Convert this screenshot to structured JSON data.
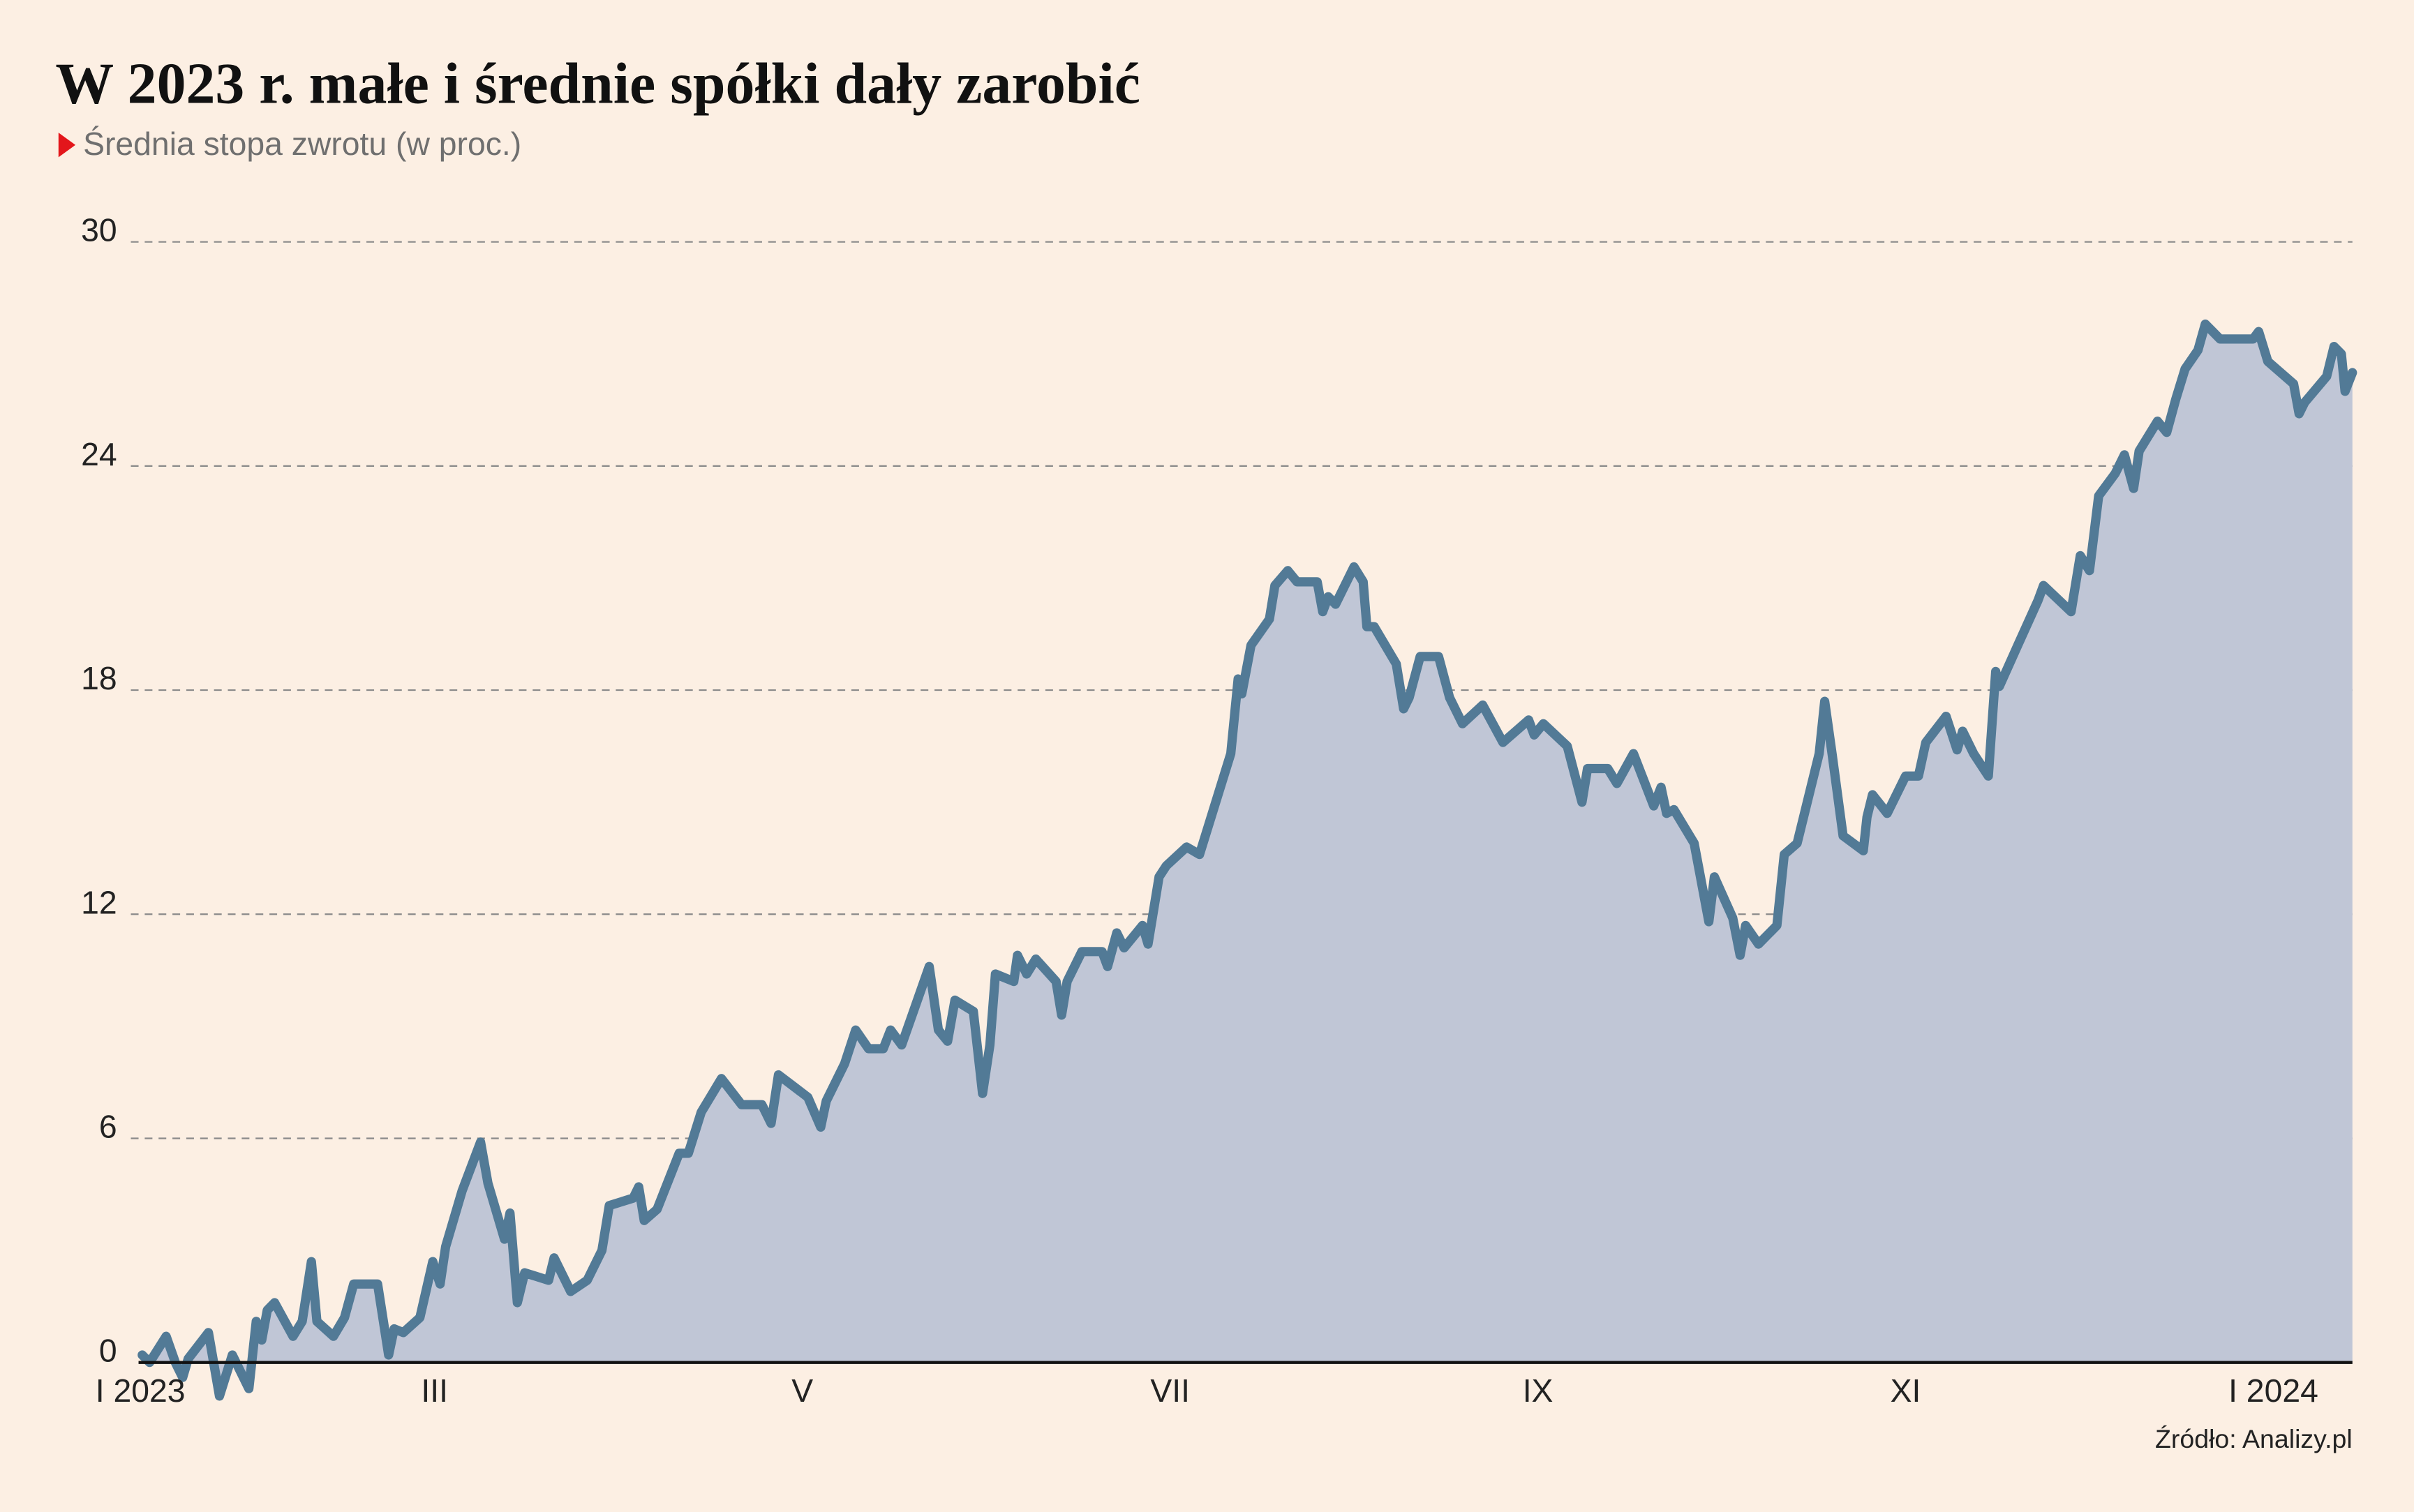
{
  "chart_data": {
    "type": "area",
    "title": "W 2023 r. małe i średnie spółki dały zarobić",
    "subtitle": "Średnia stopa zwrotu (w proc.)",
    "source": "Źródło: Analizy.pl",
    "fill_color": "#c0c6d6",
    "line_color": "#527a96",
    "marker_color": "#e3161b",
    "grid": true,
    "xlim": [
      0.39,
      12.43
    ],
    "ylim": [
      0,
      30
    ],
    "yticks": [
      0,
      6,
      12,
      18,
      24,
      30
    ],
    "xticks": [
      {
        "value": 0,
        "label": "I 2023"
      },
      {
        "value": 2,
        "label": "III"
      },
      {
        "value": 4,
        "label": "V"
      },
      {
        "value": 6,
        "label": "VII"
      },
      {
        "value": 8,
        "label": "IX"
      },
      {
        "value": 10,
        "label": "XI"
      },
      {
        "value": 12,
        "label": "I 2024"
      }
    ],
    "x": [
      0.41,
      0.45,
      0.54,
      0.59,
      0.63,
      0.66,
      0.77,
      0.83,
      0.9,
      0.99,
      1.03,
      1.06,
      1.09,
      1.13,
      1.23,
      1.28,
      1.33,
      1.36,
      1.45,
      1.51,
      1.56,
      1.69,
      1.75,
      1.78,
      1.83,
      1.92,
      1.99,
      2.03,
      2.06,
      2.15,
      2.25,
      2.29,
      2.38,
      2.41,
      2.45,
      2.49,
      2.62,
      2.65,
      2.7,
      2.74,
      2.83,
      2.91,
      2.95,
      3.08,
      3.11,
      3.14,
      3.21,
      3.33,
      3.38,
      3.45,
      3.56,
      3.67,
      3.78,
      3.83,
      3.87,
      4.03,
      4.1,
      4.13,
      4.23,
      4.29,
      4.36,
      4.44,
      4.48,
      4.54,
      4.59,
      4.69,
      4.74,
      4.79,
      4.83,
      4.93,
      4.98,
      5.02,
      5.05,
      5.15,
      5.17,
      5.22,
      5.27,
      5.38,
      5.41,
      5.44,
      5.52,
      5.63,
      5.66,
      5.71,
      5.75,
      5.85,
      5.88,
      5.94,
      5.98,
      6.09,
      6.16,
      6.33,
      6.37,
      6.39,
      6.44,
      6.54,
      6.57,
      6.64,
      6.69,
      6.8,
      6.83,
      6.86,
      6.9,
      7.0,
      7.05,
      7.07,
      7.11,
      7.23,
      7.27,
      7.3,
      7.36,
      7.46,
      7.52,
      7.59,
      7.7,
      7.81,
      7.95,
      7.98,
      8.03,
      8.16,
      8.24,
      8.27,
      8.38,
      8.43,
      8.52,
      8.63,
      8.67,
      8.7,
      8.74,
      8.85,
      8.93,
      8.96,
      9.06,
      9.1,
      9.13,
      9.2,
      9.3,
      9.34,
      9.41,
      9.53,
      9.56,
      9.6,
      9.66,
      9.77,
      9.79,
      9.82,
      9.9,
      10.0,
      10.07,
      10.11,
      10.22,
      10.28,
      10.31,
      10.37,
      10.45,
      10.49,
      10.51,
      10.61,
      10.72,
      10.75,
      10.9,
      10.95,
      11.0,
      11.05,
      11.14,
      11.19,
      11.24,
      11.27,
      11.37,
      11.42,
      11.47,
      11.52,
      11.59,
      11.63,
      11.71,
      11.89,
      11.92,
      11.97,
      12.11,
      12.14,
      12.17,
      12.29,
      12.33,
      12.37,
      12.39,
      12.43
    ],
    "values": [
      0.2,
      0,
      0.7,
      0,
      -0.4,
      0.1,
      0.8,
      -0.9,
      0.2,
      -0.7,
      1.1,
      0.6,
      1.4,
      1.6,
      0.7,
      1.1,
      2.7,
      1.1,
      0.7,
      1.2,
      2.1,
      2.1,
      0.2,
      0.9,
      0.8,
      1.2,
      2.7,
      2.1,
      3.1,
      4.6,
      5.9,
      4.8,
      3.3,
      4.0,
      1.6,
      2.4,
      2.2,
      2.8,
      2.3,
      1.9,
      2.2,
      3.0,
      4.2,
      4.4,
      4.7,
      3.8,
      4.1,
      5.6,
      5.6,
      6.7,
      7.6,
      6.9,
      6.9,
      6.4,
      7.7,
      7.1,
      6.3,
      7.0,
      8.0,
      8.9,
      8.4,
      8.4,
      8.9,
      8.5,
      9.2,
      10.6,
      8.9,
      8.6,
      9.7,
      9.4,
      7.2,
      8.5,
      10.4,
      10.2,
      10.9,
      10.4,
      10.8,
      10.2,
      9.3,
      10.2,
      11.0,
      11.0,
      10.6,
      11.5,
      11.1,
      11.7,
      11.2,
      13.0,
      13.3,
      13.8,
      13.6,
      16.3,
      18.3,
      17.9,
      19.2,
      19.9,
      20.8,
      21.2,
      20.9,
      20.9,
      20.1,
      20.5,
      20.3,
      21.3,
      20.9,
      19.7,
      19.7,
      18.7,
      17.5,
      17.8,
      18.9,
      18.9,
      17.8,
      17.1,
      17.6,
      16.6,
      17.2,
      16.8,
      17.1,
      16.5,
      15.0,
      15.9,
      15.9,
      15.5,
      16.3,
      14.9,
      15.4,
      14.7,
      14.8,
      13.9,
      11.8,
      13.0,
      11.9,
      10.9,
      11.7,
      11.2,
      11.7,
      13.6,
      13.9,
      16.3,
      17.7,
      16.3,
      14.1,
      13.7,
      14.6,
      15.2,
      14.7,
      15.7,
      15.7,
      16.6,
      17.3,
      16.4,
      16.9,
      16.3,
      15.7,
      18.5,
      18.1,
      19.2,
      20.4,
      20.8,
      20.1,
      21.6,
      21.2,
      23.2,
      23.8,
      24.3,
      23.4,
      24.4,
      25.2,
      24.9,
      25.8,
      26.6,
      27.1,
      27.8,
      27.4,
      27.4,
      27.6,
      26.8,
      26.2,
      25.4,
      25.7,
      26.4,
      27.2,
      27.0,
      26.0,
      26.5
    ]
  }
}
